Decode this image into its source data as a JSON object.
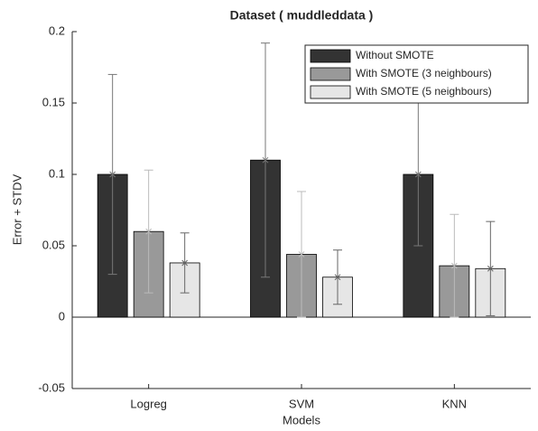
{
  "chart_data": {
    "type": "bar",
    "title": "Dataset ( muddleddata )",
    "x_label": "Models",
    "y_label": "Error + STDV",
    "categories": [
      "Logreg",
      "SVM",
      "KNN"
    ],
    "series": [
      {
        "name": "Without SMOTE",
        "color": "#333333",
        "values": [
          0.1,
          0.11,
          0.1
        ],
        "errors": [
          0.07,
          0.082,
          0.05
        ]
      },
      {
        "name": "With SMOTE (3 neighbours)",
        "color": "#999999",
        "values": [
          0.06,
          0.044,
          0.036
        ],
        "errors": [
          0.043,
          0.044,
          0.036
        ]
      },
      {
        "name": "With SMOTE (5 neighbours)",
        "color": "#e6e6e6",
        "values": [
          0.038,
          0.028,
          0.034
        ],
        "errors": [
          0.021,
          0.019,
          0.033
        ]
      }
    ],
    "ylim": [
      -0.05,
      0.2
    ],
    "yticks": [
      -0.05,
      0,
      0.05,
      0.1,
      0.15,
      0.2
    ],
    "grid": false,
    "legend": "northeast"
  }
}
